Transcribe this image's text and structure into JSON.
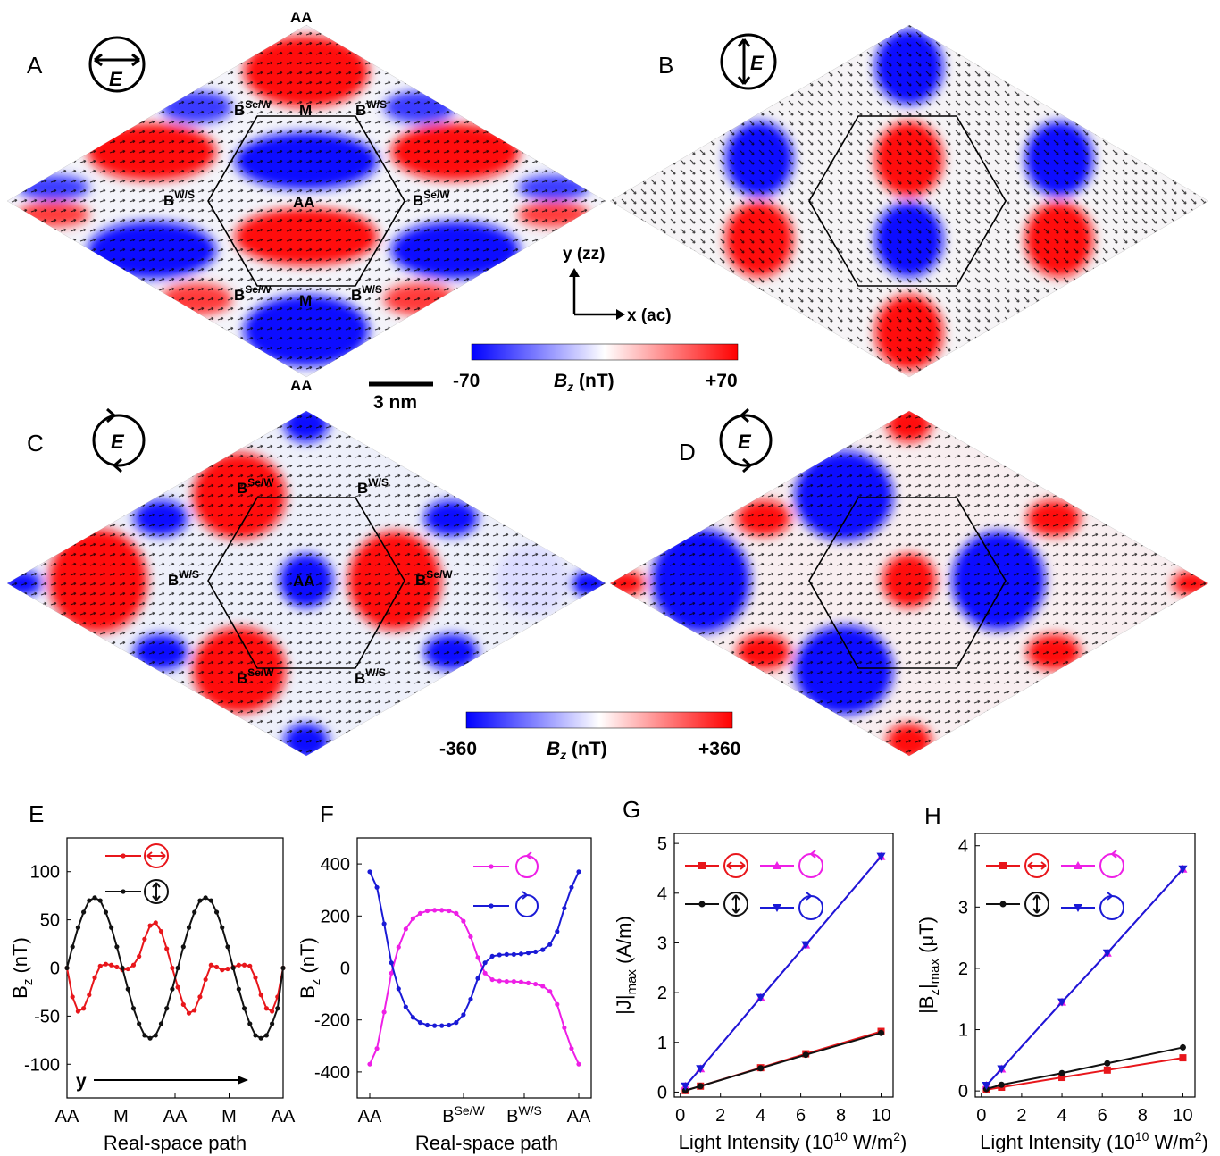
{
  "panels": {
    "A": "A",
    "B": "B",
    "C": "C",
    "D": "D",
    "E": "E",
    "F": "F",
    "G": "G",
    "H": "H"
  },
  "map_labels": {
    "AA": "AA",
    "M": "M",
    "B_SeW_base": "B",
    "B_SeW_sup": "Se/W",
    "B_WS_base": "B",
    "B_WS_sup": "W/S",
    "E": "E"
  },
  "axes_inset": {
    "y": "y (zz)",
    "x": "x (ac)"
  },
  "scale_bar": "3 nm",
  "colorbar_top": {
    "min": "-70",
    "label_base": "B",
    "label_sub": "z",
    "label_unit": " (nT)",
    "max": "+70",
    "colors": [
      "#0000ff",
      "#ffffff",
      "#ff0000"
    ]
  },
  "colorbar_bottom": {
    "min": "-360",
    "label_base": "B",
    "label_sub": "z",
    "label_unit": " (nT)",
    "max": "+360",
    "colors": [
      "#0000ff",
      "#ffffff",
      "#ff0000"
    ]
  },
  "colors": {
    "red": "#e8161b",
    "black": "#111111",
    "magenta": "#ee1fe6",
    "blue": "#1a1ad6"
  },
  "chart_data": [
    {
      "panel": "E",
      "type": "line",
      "xlabel": "Real-space path",
      "ylabel_base": "B",
      "ylabel_sub": "z",
      "ylabel_unit": " (nT)",
      "x_ticks": [
        "AA",
        "M",
        "AA",
        "M",
        "AA"
      ],
      "y_ticks": [
        -100,
        -50,
        0,
        50,
        100
      ],
      "ylim": [
        -135,
        135
      ],
      "arrow_label": "y",
      "series": [
        {
          "legend_icon": "linear-horizontal-icon",
          "color": "red",
          "values": [
            0,
            -30,
            -45,
            -42,
            -28,
            -10,
            2,
            4,
            3,
            1,
            -2,
            -1,
            3,
            12,
            30,
            44,
            47,
            38,
            20,
            0,
            -20,
            -38,
            -47,
            -44,
            -30,
            -12,
            3,
            1,
            -2,
            -1,
            1,
            3,
            3,
            2,
            -10,
            -28,
            -42,
            -45,
            -30,
            0
          ]
        },
        {
          "legend_icon": "linear-vertical-icon",
          "color": "black",
          "values": [
            0,
            22,
            42,
            58,
            70,
            73,
            70,
            58,
            42,
            22,
            0,
            -22,
            -42,
            -58,
            -70,
            -73,
            -70,
            -58,
            -42,
            -22,
            0,
            22,
            42,
            58,
            70,
            73,
            70,
            58,
            42,
            22,
            0,
            -22,
            -42,
            -58,
            -70,
            -73,
            -70,
            -58,
            -42,
            0
          ]
        }
      ]
    },
    {
      "panel": "F",
      "type": "line",
      "xlabel": "Real-space path",
      "ylabel_base": "B",
      "ylabel_sub": "z",
      "ylabel_unit": " (nT)",
      "x_ticks": [
        {
          "base": "AA",
          "sup": ""
        },
        {
          "base": "B",
          "sup": "Se/W"
        },
        {
          "base": "B",
          "sup": "W/S"
        },
        {
          "base": "AA",
          "sup": ""
        }
      ],
      "y_ticks": [
        -400,
        -200,
        0,
        200,
        400
      ],
      "ylim": [
        -500,
        500
      ],
      "series": [
        {
          "legend_icon": "circular-left-icon",
          "color": "magenta",
          "values": [
            -370,
            -310,
            -170,
            -20,
            80,
            150,
            190,
            210,
            220,
            222,
            222,
            220,
            210,
            180,
            120,
            40,
            -20,
            -45,
            -50,
            -52,
            -52,
            -54,
            -58,
            -62,
            -70,
            -90,
            -140,
            -230,
            -310,
            -370
          ]
        },
        {
          "legend_icon": "circular-right-icon",
          "color": "blue",
          "values": [
            370,
            310,
            170,
            20,
            -80,
            -150,
            -190,
            -210,
            -220,
            -222,
            -222,
            -220,
            -210,
            -180,
            -120,
            -40,
            20,
            45,
            50,
            52,
            52,
            54,
            58,
            62,
            70,
            90,
            140,
            230,
            310,
            370
          ]
        }
      ]
    },
    {
      "panel": "G",
      "type": "line",
      "xlabel": "Light Intensity (10",
      "xlabel_sup": "10",
      "xlabel_tail": " W/m",
      "xlabel_sup2": "2",
      "xlabel_end": ")",
      "ylabel": "|J|",
      "ylabel_sub": "max",
      "ylabel_unit": " (A/m)",
      "x_ticks": [
        0,
        2,
        4,
        6,
        8,
        10
      ],
      "y_ticks": [
        0,
        1,
        2,
        3,
        4,
        5
      ],
      "xlim": [
        -0.3,
        10.6
      ],
      "ylim": [
        -0.1,
        5.2
      ],
      "x": [
        0.25,
        1,
        4,
        6.25,
        10
      ],
      "series": [
        {
          "legend_icon": "linear-horizontal-icon",
          "color": "red",
          "marker": "square",
          "values": [
            0.03,
            0.12,
            0.49,
            0.77,
            1.22
          ]
        },
        {
          "legend_icon": "circular-left-icon",
          "color": "magenta",
          "marker": "triangle-up",
          "values": [
            0.12,
            0.47,
            1.9,
            2.96,
            4.74
          ]
        },
        {
          "legend_icon": "linear-vertical-icon",
          "color": "black",
          "marker": "circle",
          "values": [
            0.03,
            0.12,
            0.48,
            0.75,
            1.19
          ]
        },
        {
          "legend_icon": "circular-right-icon",
          "color": "blue",
          "marker": "triangle-down",
          "values": [
            0.12,
            0.47,
            1.9,
            2.96,
            4.74
          ]
        }
      ]
    },
    {
      "panel": "H",
      "type": "line",
      "xlabel": "Light Intensity (10",
      "xlabel_sup": "10",
      "xlabel_tail": " W/m",
      "xlabel_sup2": "2",
      "xlabel_end": ")",
      "ylabel": "|B",
      "ylabel_sub": "z",
      "ylabel_mid": "|",
      "ylabel_sub2": "max",
      "ylabel_unit": " (μT)",
      "x_ticks": [
        0,
        2,
        4,
        6,
        8,
        10
      ],
      "y_ticks": [
        0,
        1,
        2,
        3,
        4
      ],
      "xlim": [
        -0.3,
        10.6
      ],
      "ylim": [
        -0.1,
        4.2
      ],
      "x": [
        0.25,
        1,
        4,
        6.25,
        10
      ],
      "series": [
        {
          "legend_icon": "linear-horizontal-icon",
          "color": "red",
          "marker": "square",
          "values": [
            0.02,
            0.06,
            0.22,
            0.34,
            0.54
          ]
        },
        {
          "legend_icon": "circular-left-icon",
          "color": "magenta",
          "marker": "triangle-up",
          "values": [
            0.09,
            0.36,
            1.45,
            2.25,
            3.62
          ]
        },
        {
          "legend_icon": "linear-vertical-icon",
          "color": "black",
          "marker": "circle",
          "values": [
            0.03,
            0.1,
            0.29,
            0.45,
            0.71
          ]
        },
        {
          "legend_icon": "circular-right-icon",
          "color": "blue",
          "marker": "triangle-down",
          "values": [
            0.09,
            0.36,
            1.45,
            2.25,
            3.62
          ]
        }
      ]
    }
  ]
}
